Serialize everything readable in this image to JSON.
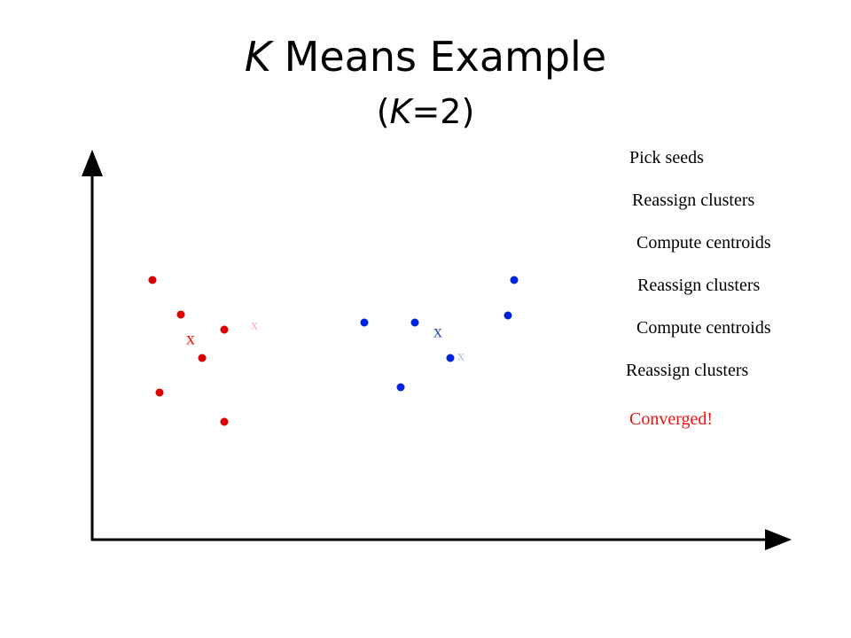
{
  "title": {
    "k": "K",
    "rest": " Means Example"
  },
  "subtitle": {
    "open": "(",
    "k": "K",
    "rest": "=2)"
  },
  "steps": [
    {
      "label": "Pick seeds"
    },
    {
      "label": "Reassign clusters"
    },
    {
      "label": "Compute centroids"
    },
    {
      "label": "Reassign clusters"
    },
    {
      "label": "Compute centroids"
    },
    {
      "label": "Reassign clusters"
    },
    {
      "label": "Converged!",
      "color": "#ee1111"
    }
  ],
  "colors": {
    "cluster_red": "#dd0000",
    "cluster_blue": "#0022dd",
    "axis": "#000000",
    "centroid_blue": "#2255aa"
  },
  "clusters": [
    {
      "name": "red",
      "color": "#dd0000",
      "points": [
        [
          172,
          316
        ],
        [
          204,
          355
        ],
        [
          253,
          372
        ],
        [
          228,
          404
        ],
        [
          180,
          443
        ],
        [
          253,
          476
        ]
      ],
      "centroid": {
        "glyph": "x",
        "pos": [
          215,
          384
        ],
        "color": "#ee1111"
      },
      "faded_centroid": {
        "glyph": "x",
        "pos": [
          287,
          368
        ],
        "color": "#ffaaaa"
      }
    },
    {
      "name": "blue",
      "color": "#0022dd",
      "points": [
        [
          411,
          364
        ],
        [
          468,
          364
        ],
        [
          573,
          356
        ],
        [
          580,
          316
        ],
        [
          508,
          404
        ],
        [
          452,
          437
        ]
      ],
      "centroid": {
        "glyph": "x",
        "pos": [
          494,
          376
        ],
        "color": "#2255aa"
      },
      "faded_centroid": {
        "glyph": "x",
        "pos": [
          520,
          403
        ],
        "color": "#aabbdd"
      }
    }
  ]
}
